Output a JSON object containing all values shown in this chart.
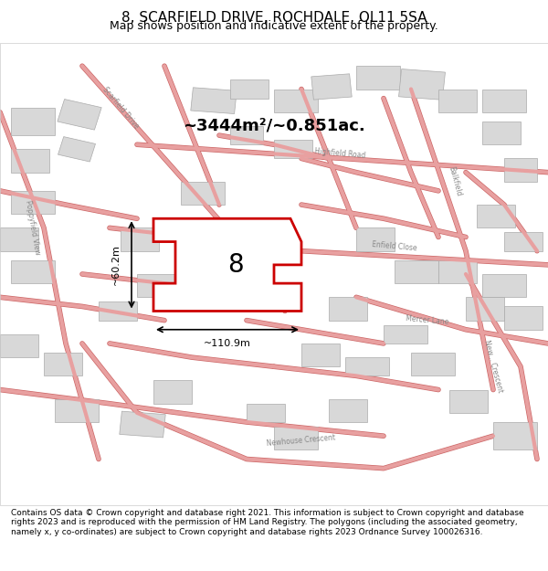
{
  "title": "8, SCARFIELD DRIVE, ROCHDALE, OL11 5SA",
  "subtitle": "Map shows position and indicative extent of the property.",
  "area_text": "~3444m²/~0.851ac.",
  "width_label": "~110.9m",
  "height_label": "~60.2m",
  "plot_number": "8",
  "footer_text": "Contains OS data © Crown copyright and database right 2021. This information is subject to Crown copyright and database rights 2023 and is reproduced with the permission of HM Land Registry. The polygons (including the associated geometry, namely x, y co-ordinates) are subject to Crown copyright and database rights 2023 Ordnance Survey 100026316.",
  "bg_color": "#f5f5f5",
  "map_bg": "#ffffff",
  "road_color": "#e8a0a0",
  "road_outline": "#cc6666",
  "highlight_color": "#cc0000",
  "building_fill": "#d8d8d8",
  "building_edge": "#aaaaaa",
  "title_fontsize": 11,
  "subtitle_fontsize": 9
}
